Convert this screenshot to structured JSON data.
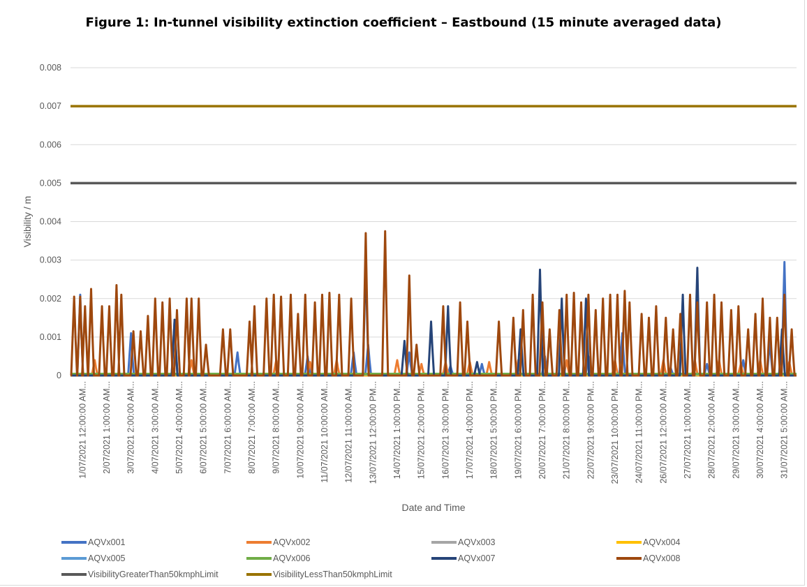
{
  "title": "Figure 1: In-tunnel visibility extinction coefficient – Eastbound (15 minute averaged data)",
  "chart_data": {
    "type": "line",
    "title": "Figure 1: In-tunnel visibility extinction coefficient – Eastbound (15 minute averaged data)",
    "xlabel": "Date and Time",
    "ylabel": "Visibility / m",
    "ylim": [
      0,
      0.008
    ],
    "yticks": [
      "0",
      "0.001",
      "0.002",
      "0.003",
      "0.004",
      "0.005",
      "0.006",
      "0.007",
      "0.008"
    ],
    "grid": true,
    "legend_position": "bottom",
    "categories": [
      "1/07/2021 12:00:00 AM...",
      "2/07/2021 1:00:00 AM...",
      "3/07/2021 2:00:00 AM...",
      "4/07/2021 3:00:00 AM...",
      "5/07/2021 4:00:00 AM...",
      "6/07/2021 5:00:00 AM...",
      "7/07/2021 6:00:00 AM...",
      "8/07/2021 7:00:00 AM...",
      "9/07/2021 8:00:00 AM...",
      "10/07/2021 9:00:00 AM...",
      "11/07/2021 10:00:00 AM...",
      "12/07/2021 11:00:00 AM...",
      "13/07/2021 12:00:00 PM...",
      "14/07/2021 1:00:00 PM...",
      "15/07/2021 2:00:00 PM...",
      "16/07/2021 3:00:00 PM...",
      "17/07/2021 4:00:00 PM...",
      "18/07/2021 5:00:00 PM...",
      "19/07/2021 6:00:00 PM...",
      "20/07/2021 7:00:00 PM...",
      "21/07/2021 8:00:00 PM...",
      "22/07/2021 9:00:00 PM...",
      "23/07/2021 10:00:00 PM...",
      "24/07/2021 11:00:00 PM...",
      "26/07/2021 12:00:00 AM...",
      "27/07/2021 1:00:00 AM...",
      "28/07/2021 2:00:00 AM...",
      "29/07/2021 3:00:00 AM...",
      "30/07/2021 4:00:00 AM...",
      "31/07/2021 5:00:00 AM..."
    ],
    "series": [
      {
        "name": "AQVx001",
        "color": "#4472c4",
        "kind": "peaks",
        "peaks": [
          [
            0.4,
            0.0021
          ],
          [
            2.5,
            0.0011
          ],
          [
            4.3,
            0.00145
          ],
          [
            6.9,
            0.0006
          ],
          [
            9.8,
            0.0005
          ],
          [
            11.7,
            0.0006
          ],
          [
            12.3,
            0.0008
          ],
          [
            14.0,
            0.0006
          ],
          [
            15.7,
            0.00025
          ],
          [
            17.0,
            0.0003
          ],
          [
            19.6,
            0.0005
          ],
          [
            21.4,
            0.0005
          ],
          [
            22.8,
            0.0011
          ],
          [
            24.8,
            0.0002
          ],
          [
            26.3,
            0.0003
          ],
          [
            27.8,
            0.0004
          ],
          [
            28.9,
            0.0009
          ],
          [
            29.5,
            0.00295
          ]
        ]
      },
      {
        "name": "AQVx002",
        "color": "#ed7d31",
        "kind": "peaks",
        "peaks": [
          [
            1.0,
            0.0004
          ],
          [
            5.0,
            0.0004
          ],
          [
            8.5,
            0.0004
          ],
          [
            9.9,
            0.00035
          ],
          [
            11.0,
            0.0004
          ],
          [
            13.5,
            0.0004
          ],
          [
            14.5,
            0.0003
          ],
          [
            15.5,
            0.00035
          ],
          [
            16.5,
            0.00035
          ],
          [
            17.3,
            0.00035
          ],
          [
            18.5,
            0.0004
          ],
          [
            20.5,
            0.0004
          ],
          [
            22.5,
            0.0004
          ],
          [
            24.5,
            0.0004
          ],
          [
            25.8,
            0.0004
          ],
          [
            26.8,
            0.0004
          ],
          [
            27.7,
            0.0003
          ],
          [
            28.5,
            0.0004
          ],
          [
            29.7,
            0.00035
          ]
        ]
      },
      {
        "name": "AQVx003",
        "color": "#a5a5a5",
        "kind": "flat",
        "value": 2e-05
      },
      {
        "name": "AQVx004",
        "color": "#ffc000",
        "kind": "flat",
        "value": 1e-05
      },
      {
        "name": "AQVx005",
        "color": "#5b9bd5",
        "kind": "flat",
        "value": 3e-05
      },
      {
        "name": "AQVx006",
        "color": "#70ad47",
        "kind": "flat",
        "value": 4e-05
      },
      {
        "name": "AQVx007",
        "color": "#264478",
        "kind": "peaks",
        "peaks": [
          [
            4.3,
            0.00145
          ],
          [
            12.2,
            0.0031
          ],
          [
            13.8,
            0.0009
          ],
          [
            14.9,
            0.0014
          ],
          [
            15.6,
            0.0018
          ],
          [
            16.8,
            0.00035
          ],
          [
            18.6,
            0.0012
          ],
          [
            19.4,
            0.00275
          ],
          [
            20.3,
            0.002
          ],
          [
            21.3,
            0.002
          ],
          [
            25.3,
            0.0021
          ],
          [
            25.9,
            0.0028
          ],
          [
            29.4,
            0.0012
          ]
        ]
      },
      {
        "name": "AQVx008",
        "color": "#9e480e",
        "kind": "peaks",
        "peaks": [
          [
            0.15,
            0.00205
          ],
          [
            0.4,
            0.00205
          ],
          [
            0.6,
            0.0018
          ],
          [
            0.85,
            0.00225
          ],
          [
            1.3,
            0.0018
          ],
          [
            1.6,
            0.0018
          ],
          [
            1.9,
            0.00235
          ],
          [
            2.1,
            0.0021
          ],
          [
            2.6,
            0.00115
          ],
          [
            2.9,
            0.00115
          ],
          [
            3.2,
            0.00155
          ],
          [
            3.5,
            0.002
          ],
          [
            3.8,
            0.0019
          ],
          [
            4.1,
            0.002
          ],
          [
            4.4,
            0.0017
          ],
          [
            4.8,
            0.002
          ],
          [
            5.0,
            0.002
          ],
          [
            5.3,
            0.002
          ],
          [
            5.6,
            0.0008
          ],
          [
            6.3,
            0.0012
          ],
          [
            6.6,
            0.0012
          ],
          [
            7.4,
            0.0014
          ],
          [
            7.6,
            0.0018
          ],
          [
            8.1,
            0.002
          ],
          [
            8.4,
            0.0021
          ],
          [
            8.7,
            0.00205
          ],
          [
            9.1,
            0.0021
          ],
          [
            9.4,
            0.0016
          ],
          [
            9.7,
            0.0021
          ],
          [
            10.1,
            0.0019
          ],
          [
            10.4,
            0.0021
          ],
          [
            10.7,
            0.00215
          ],
          [
            11.1,
            0.0021
          ],
          [
            11.6,
            0.002
          ],
          [
            12.2,
            0.0037
          ],
          [
            13.0,
            0.00375
          ],
          [
            14.0,
            0.0026
          ],
          [
            14.3,
            0.0008
          ],
          [
            15.4,
            0.0018
          ],
          [
            16.1,
            0.0019
          ],
          [
            16.4,
            0.0014
          ],
          [
            17.7,
            0.0014
          ],
          [
            18.3,
            0.0015
          ],
          [
            18.7,
            0.0017
          ],
          [
            19.1,
            0.0021
          ],
          [
            19.5,
            0.0019
          ],
          [
            19.8,
            0.0012
          ],
          [
            20.2,
            0.0017
          ],
          [
            20.5,
            0.0021
          ],
          [
            20.8,
            0.00215
          ],
          [
            21.1,
            0.0019
          ],
          [
            21.4,
            0.0021
          ],
          [
            21.7,
            0.0017
          ],
          [
            22.0,
            0.002
          ],
          [
            22.3,
            0.0021
          ],
          [
            22.6,
            0.0021
          ],
          [
            22.9,
            0.0022
          ],
          [
            23.1,
            0.0019
          ],
          [
            23.6,
            0.0016
          ],
          [
            23.9,
            0.0015
          ],
          [
            24.2,
            0.0018
          ],
          [
            24.6,
            0.0015
          ],
          [
            24.9,
            0.0012
          ],
          [
            25.2,
            0.0016
          ],
          [
            25.6,
            0.0021
          ],
          [
            25.9,
            0.0019
          ],
          [
            26.3,
            0.0019
          ],
          [
            26.6,
            0.0021
          ],
          [
            26.9,
            0.0019
          ],
          [
            27.3,
            0.0017
          ],
          [
            27.6,
            0.0018
          ],
          [
            28.0,
            0.0012
          ],
          [
            28.3,
            0.0016
          ],
          [
            28.6,
            0.002
          ],
          [
            28.9,
            0.0015
          ],
          [
            29.2,
            0.0015
          ],
          [
            29.5,
            0.0021
          ],
          [
            29.8,
            0.0012
          ]
        ]
      },
      {
        "name": "VisibilityGreaterThan50kmphLimit",
        "color": "#595959",
        "kind": "flat",
        "value": 0.005
      },
      {
        "name": "VisibilityLessThan50kmphLimit",
        "color": "#997300",
        "kind": "flat",
        "value": 0.007
      }
    ]
  }
}
